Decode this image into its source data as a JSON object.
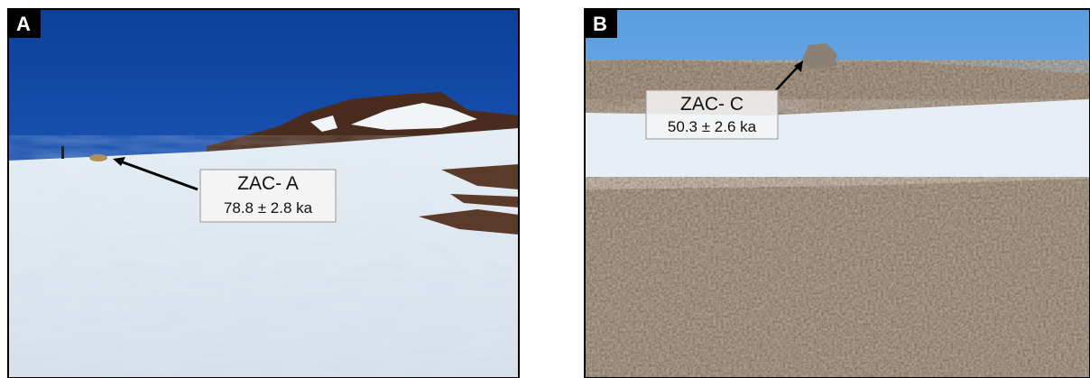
{
  "panels": [
    {
      "label": "A",
      "sample": "ZAC- A",
      "age": "78.8 ± 2.8 ka"
    },
    {
      "label": "B",
      "sample": "ZAC- C",
      "age": "50.3 ± 2.6 ka"
    }
  ]
}
